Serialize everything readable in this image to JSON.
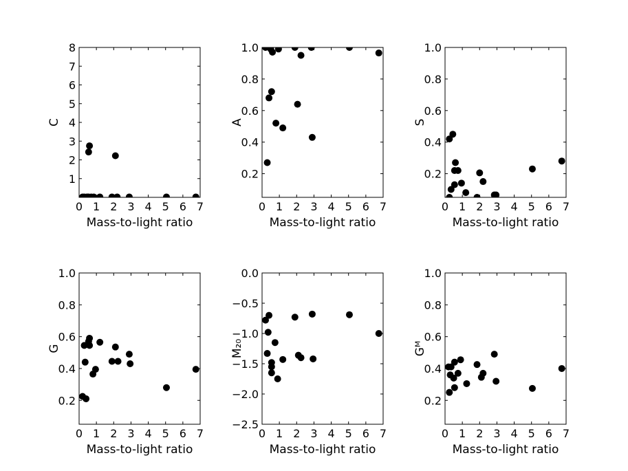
{
  "chart_data": [
    {
      "type": "scatter",
      "xlabel": "Mass-to-light ratio",
      "ylabel": "C",
      "xlim": [
        0,
        7
      ],
      "ylim": [
        0,
        8
      ],
      "xticks": [
        "0",
        "1",
        "2",
        "3",
        "4",
        "5",
        "6",
        "7"
      ],
      "yticks": [
        {
          "v": 1,
          "label": "1"
        },
        {
          "v": 2,
          "label": "2"
        },
        {
          "v": 3,
          "label": "3"
        },
        {
          "v": 4,
          "label": "4"
        },
        {
          "v": 5,
          "label": "5"
        },
        {
          "v": 6,
          "label": "6"
        },
        {
          "v": 7,
          "label": "7"
        },
        {
          "v": 8,
          "label": "8"
        }
      ],
      "points": [
        [
          0.6,
          2.75
        ],
        [
          0.55,
          2.42
        ],
        [
          2.1,
          2.22
        ],
        [
          0.2,
          0.02
        ],
        [
          0.3,
          0.02
        ],
        [
          0.45,
          0.02
        ],
        [
          0.55,
          0.02
        ],
        [
          0.7,
          0.02
        ],
        [
          0.85,
          0.02
        ],
        [
          1.2,
          0.02
        ],
        [
          1.9,
          0.02
        ],
        [
          2.2,
          0.02
        ],
        [
          2.9,
          0.02
        ],
        [
          5.05,
          0.02
        ],
        [
          6.75,
          0.02
        ]
      ]
    },
    {
      "type": "scatter",
      "xlabel": "Mass-to-light ratio",
      "ylabel": "A",
      "xlim": [
        0,
        7
      ],
      "ylim": [
        0.05,
        1.0
      ],
      "xticks": [
        "0",
        "1",
        "2",
        "3",
        "4",
        "5",
        "6",
        "7"
      ],
      "yticks": [
        {
          "v": 0.2,
          "label": "0.2"
        },
        {
          "v": 0.4,
          "label": "0.4"
        },
        {
          "v": 0.6,
          "label": "0.6"
        },
        {
          "v": 0.8,
          "label": "0.8"
        },
        {
          "v": 1.0,
          "label": "1.0"
        }
      ],
      "points": [
        [
          0.2,
          1.0
        ],
        [
          0.5,
          0.99
        ],
        [
          0.6,
          0.97
        ],
        [
          0.95,
          0.99
        ],
        [
          1.9,
          1.0
        ],
        [
          2.25,
          0.95
        ],
        [
          2.85,
          1.0
        ],
        [
          5.05,
          1.0
        ],
        [
          6.75,
          0.965
        ],
        [
          0.55,
          0.72
        ],
        [
          0.4,
          0.68
        ],
        [
          2.05,
          0.64
        ],
        [
          0.8,
          0.52
        ],
        [
          1.2,
          0.49
        ],
        [
          2.9,
          0.43
        ],
        [
          0.3,
          0.27
        ]
      ]
    },
    {
      "type": "scatter",
      "xlabel": "Mass-to-light ratio",
      "ylabel": "S",
      "xlim": [
        0,
        7
      ],
      "ylim": [
        0.05,
        1.0
      ],
      "xticks": [
        "0",
        "1",
        "2",
        "3",
        "4",
        "5",
        "6",
        "7"
      ],
      "yticks": [
        {
          "v": 0.2,
          "label": "0.2"
        },
        {
          "v": 0.4,
          "label": "0.4"
        },
        {
          "v": 0.6,
          "label": "0.6"
        },
        {
          "v": 0.8,
          "label": "0.8"
        },
        {
          "v": 1.0,
          "label": "1.0"
        }
      ],
      "points": [
        [
          0.45,
          0.45
        ],
        [
          0.25,
          0.42
        ],
        [
          0.6,
          0.27
        ],
        [
          0.55,
          0.22
        ],
        [
          0.75,
          0.22
        ],
        [
          0.95,
          0.14
        ],
        [
          0.55,
          0.13
        ],
        [
          0.35,
          0.1
        ],
        [
          1.2,
          0.08
        ],
        [
          0.25,
          0.05
        ],
        [
          2.0,
          0.205
        ],
        [
          2.2,
          0.15
        ],
        [
          1.85,
          0.05
        ],
        [
          2.85,
          0.065
        ],
        [
          2.95,
          0.065
        ],
        [
          5.05,
          0.23
        ],
        [
          6.75,
          0.28
        ]
      ]
    },
    {
      "type": "scatter",
      "xlabel": "Mass-to-light ratio",
      "ylabel": "G",
      "xlim": [
        0,
        7
      ],
      "ylim": [
        0.05,
        1.0
      ],
      "xticks": [
        "0",
        "1",
        "2",
        "3",
        "4",
        "5",
        "6",
        "7"
      ],
      "yticks": [
        {
          "v": 0.2,
          "label": "0.2"
        },
        {
          "v": 0.4,
          "label": "0.4"
        },
        {
          "v": 0.6,
          "label": "0.6"
        },
        {
          "v": 0.8,
          "label": "0.8"
        },
        {
          "v": 1.0,
          "label": "1.0"
        }
      ],
      "points": [
        [
          0.6,
          0.59
        ],
        [
          0.3,
          0.545
        ],
        [
          0.6,
          0.545
        ],
        [
          0.55,
          0.57
        ],
        [
          1.2,
          0.565
        ],
        [
          2.1,
          0.535
        ],
        [
          2.9,
          0.49
        ],
        [
          0.35,
          0.44
        ],
        [
          1.9,
          0.445
        ],
        [
          2.25,
          0.445
        ],
        [
          2.95,
          0.43
        ],
        [
          0.95,
          0.395
        ],
        [
          0.8,
          0.365
        ],
        [
          0.2,
          0.225
        ],
        [
          0.4,
          0.21
        ],
        [
          5.05,
          0.28
        ],
        [
          6.75,
          0.395
        ]
      ]
    },
    {
      "type": "scatter",
      "xlabel": "Mass-to-light ratio",
      "ylabel": "M₂₀",
      "xlim": [
        0,
        7
      ],
      "ylim": [
        -2.5,
        0.0
      ],
      "xticks": [
        "0",
        "1",
        "2",
        "3",
        "4",
        "5",
        "6",
        "7"
      ],
      "yticks": [
        {
          "v": -2.5,
          "label": "−2.5"
        },
        {
          "v": -2.0,
          "label": "−2.0"
        },
        {
          "v": -1.5,
          "label": "−1.5"
        },
        {
          "v": -1.0,
          "label": "−1.0"
        },
        {
          "v": -0.5,
          "label": "−0.5"
        },
        {
          "v": 0.0,
          "label": "0.0"
        }
      ],
      "points": [
        [
          0.2,
          -0.78
        ],
        [
          0.4,
          -0.7
        ],
        [
          0.35,
          -0.98
        ],
        [
          0.75,
          -1.15
        ],
        [
          0.3,
          -1.33
        ],
        [
          0.55,
          -1.48
        ],
        [
          0.55,
          -1.55
        ],
        [
          0.55,
          -1.65
        ],
        [
          0.9,
          -1.75
        ],
        [
          1.2,
          -1.43
        ],
        [
          1.9,
          -0.73
        ],
        [
          2.1,
          -1.36
        ],
        [
          2.25,
          -1.4
        ],
        [
          2.9,
          -0.68
        ],
        [
          2.95,
          -1.42
        ],
        [
          5.05,
          -0.69
        ],
        [
          6.75,
          -1.0
        ]
      ]
    },
    {
      "type": "scatter",
      "xlabel": "Mass-to-light ratio",
      "ylabel": "Gᴹ",
      "xlim": [
        0,
        7
      ],
      "ylim": [
        0.05,
        1.0
      ],
      "xticks": [
        "0",
        "1",
        "2",
        "3",
        "4",
        "5",
        "6",
        "7"
      ],
      "yticks": [
        {
          "v": 0.2,
          "label": "0.2"
        },
        {
          "v": 0.4,
          "label": "0.4"
        },
        {
          "v": 0.6,
          "label": "0.6"
        },
        {
          "v": 0.8,
          "label": "0.8"
        },
        {
          "v": 1.0,
          "label": "1.0"
        }
      ],
      "points": [
        [
          0.2,
          0.41
        ],
        [
          0.35,
          0.41
        ],
        [
          0.55,
          0.44
        ],
        [
          0.9,
          0.455
        ],
        [
          0.3,
          0.36
        ],
        [
          0.5,
          0.34
        ],
        [
          0.75,
          0.37
        ],
        [
          1.25,
          0.305
        ],
        [
          0.55,
          0.28
        ],
        [
          0.25,
          0.25
        ],
        [
          1.85,
          0.425
        ],
        [
          2.1,
          0.345
        ],
        [
          2.2,
          0.37
        ],
        [
          2.85,
          0.49
        ],
        [
          2.95,
          0.32
        ],
        [
          5.05,
          0.275
        ],
        [
          6.75,
          0.4
        ]
      ]
    }
  ]
}
